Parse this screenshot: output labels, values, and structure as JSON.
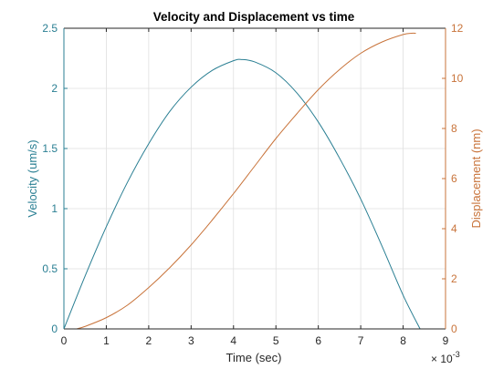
{
  "colors": {
    "velocity": "#2a7f93",
    "displacement": "#c8733a",
    "axis": "#262626",
    "grid": "#dfdfdf"
  },
  "chart_data": {
    "type": "line",
    "title": "Velocity and Displacement vs time",
    "xlabel": "Time (sec)",
    "x_multiplier": "× 10",
    "x_exponent": "-3",
    "ylabel_left": "Velocity (um/s)",
    "ylabel_right": "Displacement (nm)",
    "xlim": [
      0,
      9
    ],
    "ylim_left": [
      0,
      2.5
    ],
    "ylim_right": [
      0,
      12
    ],
    "x_ticks": [
      "0",
      "1",
      "2",
      "3",
      "4",
      "5",
      "6",
      "7",
      "8",
      "9"
    ],
    "y_ticks_left": [
      "0",
      "0.5",
      "1",
      "1.5",
      "2",
      "2.5"
    ],
    "y_ticks_right": [
      "0",
      "2",
      "4",
      "6",
      "8",
      "10",
      "12"
    ],
    "grid": true,
    "series": [
      {
        "name": "Velocity",
        "axis": "left",
        "x": [
          0,
          0.5,
          1,
          1.5,
          2,
          2.5,
          3,
          3.5,
          4,
          4.2,
          4.5,
          5,
          5.5,
          6,
          6.5,
          7,
          7.5,
          8,
          8.4
        ],
        "y": [
          0,
          0.44,
          0.85,
          1.22,
          1.54,
          1.81,
          2.01,
          2.15,
          2.23,
          2.24,
          2.22,
          2.13,
          1.96,
          1.72,
          1.42,
          1.08,
          0.69,
          0.28,
          0
        ]
      },
      {
        "name": "Displacement",
        "axis": "right",
        "x": [
          0.3,
          0.5,
          1,
          1.5,
          2,
          2.5,
          3,
          3.5,
          4,
          4.5,
          5,
          5.5,
          6,
          6.5,
          7,
          7.5,
          8,
          8.2,
          8.3
        ],
        "y": [
          0,
          0.1,
          0.45,
          0.95,
          1.65,
          2.45,
          3.35,
          4.35,
          5.4,
          6.5,
          7.6,
          8.6,
          9.55,
          10.35,
          11.0,
          11.45,
          11.75,
          11.8,
          11.8
        ]
      }
    ]
  }
}
